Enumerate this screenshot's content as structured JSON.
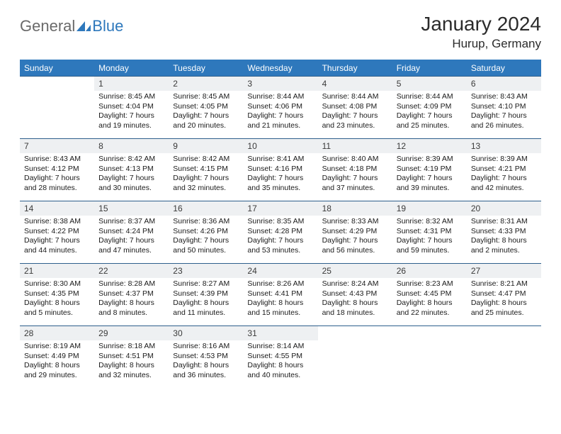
{
  "logo": {
    "part1": "General",
    "part2": "Blue"
  },
  "title": {
    "month": "January 2024",
    "location": "Hurup, Germany"
  },
  "colors": {
    "header_bg": "#2e78bc",
    "header_text": "#ffffff",
    "daynum_bg": "#eef0f2",
    "row_border": "#2e5f8c",
    "logo_gray": "#6a6a6a",
    "logo_blue": "#2e78bc"
  },
  "typography": {
    "month_fontsize": 28,
    "location_fontsize": 17,
    "weekday_fontsize": 12,
    "daynum_fontsize": 12,
    "detail_fontsize": 10.5
  },
  "weekdays": [
    "Sunday",
    "Monday",
    "Tuesday",
    "Wednesday",
    "Thursday",
    "Friday",
    "Saturday"
  ],
  "weeks": [
    [
      null,
      {
        "n": "1",
        "sr": "8:45 AM",
        "ss": "4:04 PM",
        "dl": "7 hours and 19 minutes."
      },
      {
        "n": "2",
        "sr": "8:45 AM",
        "ss": "4:05 PM",
        "dl": "7 hours and 20 minutes."
      },
      {
        "n": "3",
        "sr": "8:44 AM",
        "ss": "4:06 PM",
        "dl": "7 hours and 21 minutes."
      },
      {
        "n": "4",
        "sr": "8:44 AM",
        "ss": "4:08 PM",
        "dl": "7 hours and 23 minutes."
      },
      {
        "n": "5",
        "sr": "8:44 AM",
        "ss": "4:09 PM",
        "dl": "7 hours and 25 minutes."
      },
      {
        "n": "6",
        "sr": "8:43 AM",
        "ss": "4:10 PM",
        "dl": "7 hours and 26 minutes."
      }
    ],
    [
      {
        "n": "7",
        "sr": "8:43 AM",
        "ss": "4:12 PM",
        "dl": "7 hours and 28 minutes."
      },
      {
        "n": "8",
        "sr": "8:42 AM",
        "ss": "4:13 PM",
        "dl": "7 hours and 30 minutes."
      },
      {
        "n": "9",
        "sr": "8:42 AM",
        "ss": "4:15 PM",
        "dl": "7 hours and 32 minutes."
      },
      {
        "n": "10",
        "sr": "8:41 AM",
        "ss": "4:16 PM",
        "dl": "7 hours and 35 minutes."
      },
      {
        "n": "11",
        "sr": "8:40 AM",
        "ss": "4:18 PM",
        "dl": "7 hours and 37 minutes."
      },
      {
        "n": "12",
        "sr": "8:39 AM",
        "ss": "4:19 PM",
        "dl": "7 hours and 39 minutes."
      },
      {
        "n": "13",
        "sr": "8:39 AM",
        "ss": "4:21 PM",
        "dl": "7 hours and 42 minutes."
      }
    ],
    [
      {
        "n": "14",
        "sr": "8:38 AM",
        "ss": "4:22 PM",
        "dl": "7 hours and 44 minutes."
      },
      {
        "n": "15",
        "sr": "8:37 AM",
        "ss": "4:24 PM",
        "dl": "7 hours and 47 minutes."
      },
      {
        "n": "16",
        "sr": "8:36 AM",
        "ss": "4:26 PM",
        "dl": "7 hours and 50 minutes."
      },
      {
        "n": "17",
        "sr": "8:35 AM",
        "ss": "4:28 PM",
        "dl": "7 hours and 53 minutes."
      },
      {
        "n": "18",
        "sr": "8:33 AM",
        "ss": "4:29 PM",
        "dl": "7 hours and 56 minutes."
      },
      {
        "n": "19",
        "sr": "8:32 AM",
        "ss": "4:31 PM",
        "dl": "7 hours and 59 minutes."
      },
      {
        "n": "20",
        "sr": "8:31 AM",
        "ss": "4:33 PM",
        "dl": "8 hours and 2 minutes."
      }
    ],
    [
      {
        "n": "21",
        "sr": "8:30 AM",
        "ss": "4:35 PM",
        "dl": "8 hours and 5 minutes."
      },
      {
        "n": "22",
        "sr": "8:28 AM",
        "ss": "4:37 PM",
        "dl": "8 hours and 8 minutes."
      },
      {
        "n": "23",
        "sr": "8:27 AM",
        "ss": "4:39 PM",
        "dl": "8 hours and 11 minutes."
      },
      {
        "n": "24",
        "sr": "8:26 AM",
        "ss": "4:41 PM",
        "dl": "8 hours and 15 minutes."
      },
      {
        "n": "25",
        "sr": "8:24 AM",
        "ss": "4:43 PM",
        "dl": "8 hours and 18 minutes."
      },
      {
        "n": "26",
        "sr": "8:23 AM",
        "ss": "4:45 PM",
        "dl": "8 hours and 22 minutes."
      },
      {
        "n": "27",
        "sr": "8:21 AM",
        "ss": "4:47 PM",
        "dl": "8 hours and 25 minutes."
      }
    ],
    [
      {
        "n": "28",
        "sr": "8:19 AM",
        "ss": "4:49 PM",
        "dl": "8 hours and 29 minutes."
      },
      {
        "n": "29",
        "sr": "8:18 AM",
        "ss": "4:51 PM",
        "dl": "8 hours and 32 minutes."
      },
      {
        "n": "30",
        "sr": "8:16 AM",
        "ss": "4:53 PM",
        "dl": "8 hours and 36 minutes."
      },
      {
        "n": "31",
        "sr": "8:14 AM",
        "ss": "4:55 PM",
        "dl": "8 hours and 40 minutes."
      },
      null,
      null,
      null
    ]
  ],
  "labels": {
    "sunrise": "Sunrise:",
    "sunset": "Sunset:",
    "daylight": "Daylight:"
  }
}
